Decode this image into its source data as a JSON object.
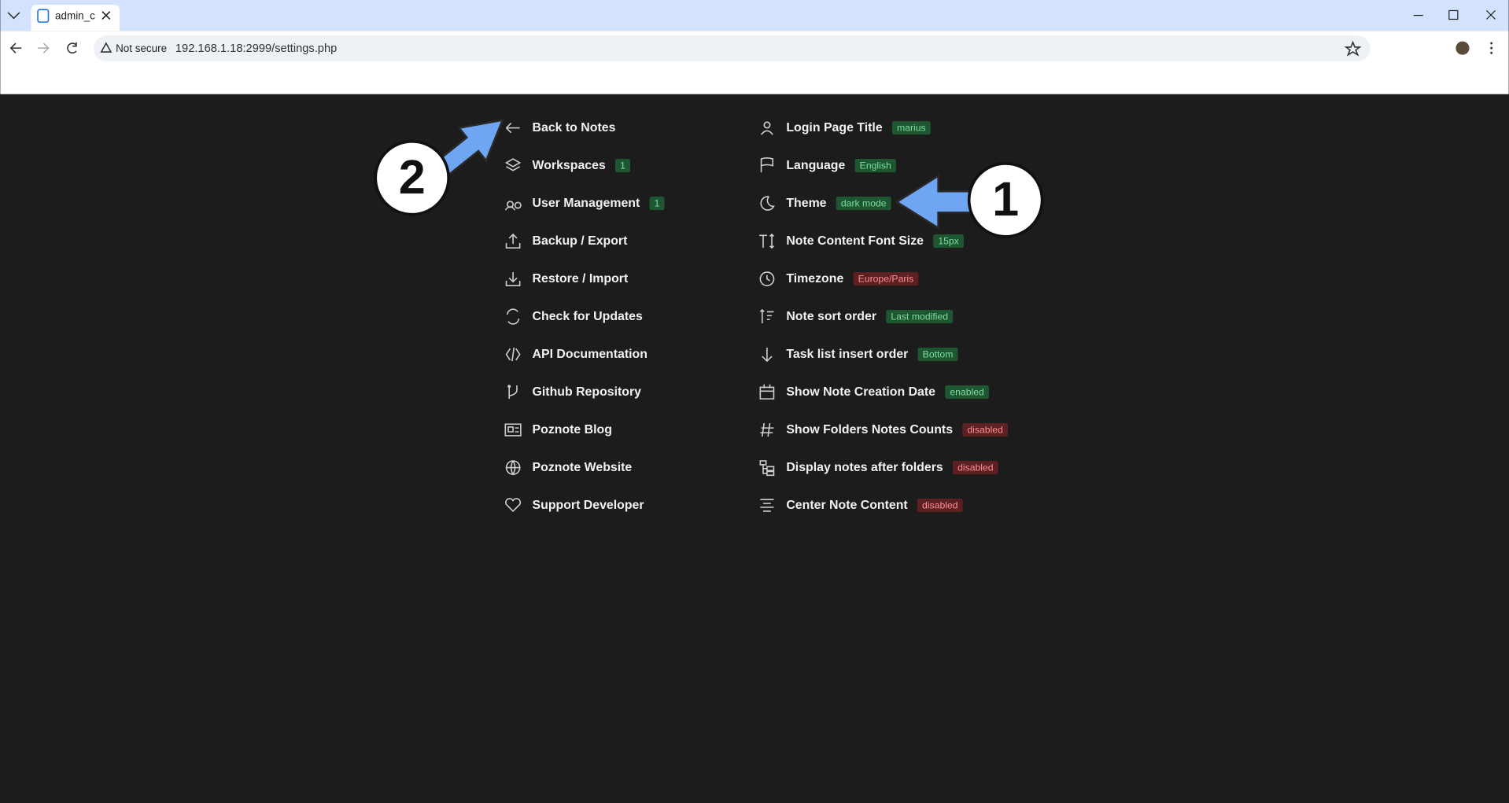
{
  "browser": {
    "tab_title": "admin_c",
    "security": "Not secure",
    "url": "192.168.1.18:2999/settings.php"
  },
  "menu_left": [
    {
      "label": "Back to Notes"
    },
    {
      "label": "Workspaces",
      "badge": "1",
      "badge_color": "green"
    },
    {
      "label": "User Management",
      "badge": "1",
      "badge_color": "green"
    },
    {
      "label": "Backup / Export"
    },
    {
      "label": "Restore / Import"
    },
    {
      "label": "Check for Updates"
    },
    {
      "label": "API Documentation"
    },
    {
      "label": "Github Repository"
    },
    {
      "label": "Poznote Blog"
    },
    {
      "label": "Poznote Website"
    },
    {
      "label": "Support Developer"
    }
  ],
  "menu_right": [
    {
      "label": "Login Page Title",
      "badge": "marius",
      "badge_color": "green"
    },
    {
      "label": "Language",
      "badge": "English",
      "badge_color": "green"
    },
    {
      "label": "Theme",
      "badge": "dark mode",
      "badge_color": "green"
    },
    {
      "label": "Note Content Font Size",
      "badge": "15px",
      "badge_color": "green"
    },
    {
      "label": "Timezone",
      "badge": "Europe/Paris",
      "badge_color": "red"
    },
    {
      "label": "Note sort order",
      "badge": "Last modified",
      "badge_color": "green"
    },
    {
      "label": "Task list insert order",
      "badge": "Bottom",
      "badge_color": "green"
    },
    {
      "label": "Show Note Creation Date",
      "badge": "enabled",
      "badge_color": "green"
    },
    {
      "label": "Show Folders Notes Counts",
      "badge": "disabled",
      "badge_color": "red"
    },
    {
      "label": "Display notes after folders",
      "badge": "disabled",
      "badge_color": "red"
    },
    {
      "label": "Center Note Content",
      "badge": "disabled",
      "badge_color": "red"
    }
  ],
  "annotations": [
    "1",
    "2"
  ]
}
